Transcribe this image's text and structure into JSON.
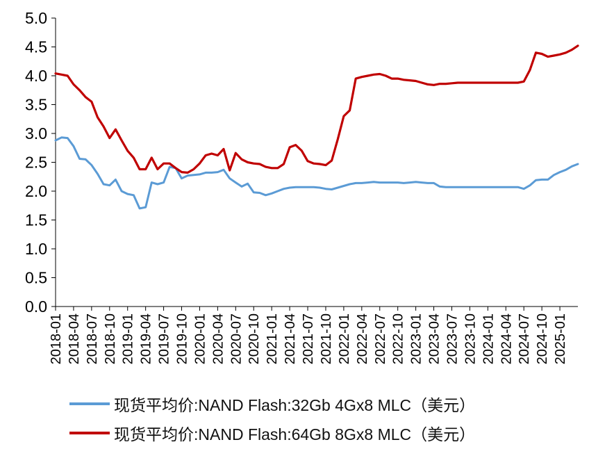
{
  "chart_data": {
    "type": "line",
    "title": "",
    "xlabel": "",
    "ylabel": "",
    "ylim": [
      0,
      5
    ],
    "yticks": [
      "0.0",
      "0.5",
      "1.0",
      "1.5",
      "2.0",
      "2.5",
      "3.0",
      "3.5",
      "4.0",
      "4.5",
      "5.0"
    ],
    "x_ticks": [
      "2018-01",
      "2018-04",
      "2018-07",
      "2018-10",
      "2019-01",
      "2019-04",
      "2019-07",
      "2019-10",
      "2020-01",
      "2020-04",
      "2020-07",
      "2020-10",
      "2021-01",
      "2021-04",
      "2021-07",
      "2021-10",
      "2022-01",
      "2022-04",
      "2022-07",
      "2022-10",
      "2023-01",
      "2023-04",
      "2023-07",
      "2023-10",
      "2024-01",
      "2024-04",
      "2024-07",
      "2024-10",
      "2025-01"
    ],
    "x_range": [
      "2018-01",
      "2025-04"
    ],
    "grid": false,
    "legend_position": "bottom",
    "series": [
      {
        "name": "现货平均价:NAND Flash:32Gb 4Gx8 MLC（美元）",
        "color": "#5b9bd5",
        "points": [
          [
            "2018-01",
            2.88
          ],
          [
            "2018-02",
            2.93
          ],
          [
            "2018-03",
            2.92
          ],
          [
            "2018-04",
            2.78
          ],
          [
            "2018-05",
            2.56
          ],
          [
            "2018-06",
            2.55
          ],
          [
            "2018-07",
            2.45
          ],
          [
            "2018-08",
            2.3
          ],
          [
            "2018-09",
            2.12
          ],
          [
            "2018-10",
            2.1
          ],
          [
            "2018-11",
            2.2
          ],
          [
            "2018-12",
            2.0
          ],
          [
            "2019-01",
            1.95
          ],
          [
            "2019-02",
            1.93
          ],
          [
            "2019-03",
            1.7
          ],
          [
            "2019-04",
            1.72
          ],
          [
            "2019-05",
            2.15
          ],
          [
            "2019-06",
            2.12
          ],
          [
            "2019-07",
            2.15
          ],
          [
            "2019-08",
            2.42
          ],
          [
            "2019-09",
            2.4
          ],
          [
            "2019-10",
            2.22
          ],
          [
            "2019-11",
            2.27
          ],
          [
            "2019-12",
            2.28
          ],
          [
            "2020-01",
            2.29
          ],
          [
            "2020-02",
            2.32
          ],
          [
            "2020-03",
            2.32
          ],
          [
            "2020-04",
            2.33
          ],
          [
            "2020-05",
            2.37
          ],
          [
            "2020-06",
            2.22
          ],
          [
            "2020-07",
            2.15
          ],
          [
            "2020-08",
            2.08
          ],
          [
            "2020-09",
            2.13
          ],
          [
            "2020-10",
            1.98
          ],
          [
            "2020-11",
            1.97
          ],
          [
            "2020-12",
            1.93
          ],
          [
            "2021-01",
            1.96
          ],
          [
            "2021-02",
            2.0
          ],
          [
            "2021-03",
            2.04
          ],
          [
            "2021-04",
            2.06
          ],
          [
            "2021-05",
            2.07
          ],
          [
            "2021-06",
            2.07
          ],
          [
            "2021-07",
            2.07
          ],
          [
            "2021-08",
            2.07
          ],
          [
            "2021-09",
            2.06
          ],
          [
            "2021-10",
            2.04
          ],
          [
            "2021-11",
            2.03
          ],
          [
            "2021-12",
            2.06
          ],
          [
            "2022-01",
            2.09
          ],
          [
            "2022-02",
            2.12
          ],
          [
            "2022-03",
            2.14
          ],
          [
            "2022-04",
            2.14
          ],
          [
            "2022-05",
            2.15
          ],
          [
            "2022-06",
            2.16
          ],
          [
            "2022-07",
            2.15
          ],
          [
            "2022-08",
            2.15
          ],
          [
            "2022-09",
            2.15
          ],
          [
            "2022-10",
            2.15
          ],
          [
            "2022-11",
            2.14
          ],
          [
            "2022-12",
            2.15
          ],
          [
            "2023-01",
            2.16
          ],
          [
            "2023-02",
            2.15
          ],
          [
            "2023-03",
            2.14
          ],
          [
            "2023-04",
            2.14
          ],
          [
            "2023-05",
            2.08
          ],
          [
            "2023-06",
            2.07
          ],
          [
            "2023-07",
            2.07
          ],
          [
            "2023-08",
            2.07
          ],
          [
            "2023-09",
            2.07
          ],
          [
            "2023-10",
            2.07
          ],
          [
            "2023-11",
            2.07
          ],
          [
            "2023-12",
            2.07
          ],
          [
            "2024-01",
            2.07
          ],
          [
            "2024-02",
            2.07
          ],
          [
            "2024-03",
            2.07
          ],
          [
            "2024-04",
            2.07
          ],
          [
            "2024-05",
            2.07
          ],
          [
            "2024-06",
            2.07
          ],
          [
            "2024-07",
            2.04
          ],
          [
            "2024-08",
            2.1
          ],
          [
            "2024-09",
            2.19
          ],
          [
            "2024-10",
            2.2
          ],
          [
            "2024-11",
            2.2
          ],
          [
            "2024-12",
            2.28
          ],
          [
            "2025-01",
            2.33
          ],
          [
            "2025-02",
            2.37
          ],
          [
            "2025-03",
            2.43
          ],
          [
            "2025-04",
            2.47
          ]
        ]
      },
      {
        "name": "现货平均价:NAND Flash:64Gb 8Gx8 MLC（美元）",
        "color": "#c00000",
        "points": [
          [
            "2018-01",
            4.04
          ],
          [
            "2018-02",
            4.02
          ],
          [
            "2018-03",
            4.0
          ],
          [
            "2018-04",
            3.85
          ],
          [
            "2018-05",
            3.75
          ],
          [
            "2018-06",
            3.63
          ],
          [
            "2018-07",
            3.55
          ],
          [
            "2018-08",
            3.28
          ],
          [
            "2018-09",
            3.12
          ],
          [
            "2018-10",
            2.92
          ],
          [
            "2018-11",
            3.07
          ],
          [
            "2018-12",
            2.88
          ],
          [
            "2019-01",
            2.7
          ],
          [
            "2019-02",
            2.58
          ],
          [
            "2019-03",
            2.38
          ],
          [
            "2019-04",
            2.38
          ],
          [
            "2019-05",
            2.58
          ],
          [
            "2019-06",
            2.38
          ],
          [
            "2019-07",
            2.48
          ],
          [
            "2019-08",
            2.48
          ],
          [
            "2019-09",
            2.4
          ],
          [
            "2019-10",
            2.33
          ],
          [
            "2019-11",
            2.32
          ],
          [
            "2019-12",
            2.38
          ],
          [
            "2020-01",
            2.48
          ],
          [
            "2020-02",
            2.62
          ],
          [
            "2020-03",
            2.65
          ],
          [
            "2020-04",
            2.62
          ],
          [
            "2020-05",
            2.73
          ],
          [
            "2020-06",
            2.36
          ],
          [
            "2020-07",
            2.66
          ],
          [
            "2020-08",
            2.55
          ],
          [
            "2020-09",
            2.5
          ],
          [
            "2020-10",
            2.48
          ],
          [
            "2020-11",
            2.47
          ],
          [
            "2020-12",
            2.42
          ],
          [
            "2021-01",
            2.4
          ],
          [
            "2021-02",
            2.4
          ],
          [
            "2021-03",
            2.47
          ],
          [
            "2021-04",
            2.76
          ],
          [
            "2021-05",
            2.8
          ],
          [
            "2021-06",
            2.7
          ],
          [
            "2021-07",
            2.52
          ],
          [
            "2021-08",
            2.48
          ],
          [
            "2021-09",
            2.47
          ],
          [
            "2021-10",
            2.45
          ],
          [
            "2021-11",
            2.53
          ],
          [
            "2021-12",
            2.9
          ],
          [
            "2022-01",
            3.3
          ],
          [
            "2022-02",
            3.4
          ],
          [
            "2022-03",
            3.95
          ],
          [
            "2022-04",
            3.98
          ],
          [
            "2022-05",
            4.0
          ],
          [
            "2022-06",
            4.02
          ],
          [
            "2022-07",
            4.03
          ],
          [
            "2022-08",
            4.0
          ],
          [
            "2022-09",
            3.95
          ],
          [
            "2022-10",
            3.95
          ],
          [
            "2022-11",
            3.93
          ],
          [
            "2022-12",
            3.92
          ],
          [
            "2023-01",
            3.91
          ],
          [
            "2023-02",
            3.88
          ],
          [
            "2023-03",
            3.85
          ],
          [
            "2023-04",
            3.84
          ],
          [
            "2023-05",
            3.86
          ],
          [
            "2023-06",
            3.86
          ],
          [
            "2023-07",
            3.87
          ],
          [
            "2023-08",
            3.88
          ],
          [
            "2023-09",
            3.88
          ],
          [
            "2023-10",
            3.88
          ],
          [
            "2023-11",
            3.88
          ],
          [
            "2023-12",
            3.88
          ],
          [
            "2024-01",
            3.88
          ],
          [
            "2024-02",
            3.88
          ],
          [
            "2024-03",
            3.88
          ],
          [
            "2024-04",
            3.88
          ],
          [
            "2024-05",
            3.88
          ],
          [
            "2024-06",
            3.88
          ],
          [
            "2024-07",
            3.9
          ],
          [
            "2024-08",
            4.1
          ],
          [
            "2024-09",
            4.4
          ],
          [
            "2024-10",
            4.38
          ],
          [
            "2024-11",
            4.33
          ],
          [
            "2024-12",
            4.35
          ],
          [
            "2025-01",
            4.37
          ],
          [
            "2025-02",
            4.4
          ],
          [
            "2025-03",
            4.45
          ],
          [
            "2025-04",
            4.52
          ]
        ]
      }
    ]
  }
}
